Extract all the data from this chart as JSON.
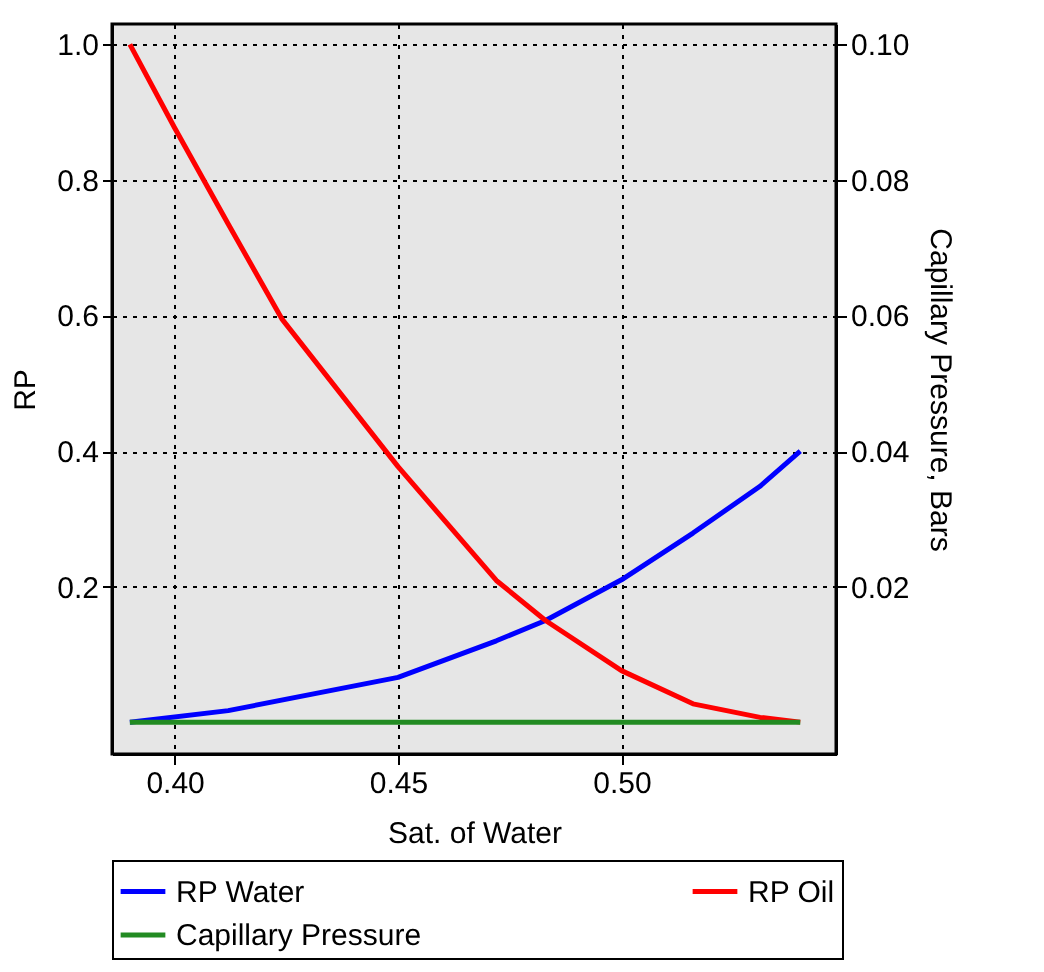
{
  "chart_data": {
    "type": "line",
    "xlabel": "Sat. of Water",
    "ylabel": "RP",
    "y2label": "Capillary Pressure, Bars",
    "xlim": [
      0.386,
      0.548
    ],
    "xticks": [
      {
        "value": 0.4,
        "label": "0.40"
      },
      {
        "value": 0.45,
        "label": "0.45"
      },
      {
        "value": 0.5,
        "label": "0.50"
      }
    ],
    "ylim": [
      -0.047,
      1.03
    ],
    "yticks": [
      0.2,
      0.4,
      0.6,
      0.8,
      {
        "value": 1.0,
        "label": "1.0"
      }
    ],
    "y2lim": [
      -0.0047,
      0.103
    ],
    "y2ticks": [
      0.02,
      0.04,
      0.06,
      0.08,
      {
        "value": 0.1,
        "label": "0.10"
      }
    ],
    "grid": true,
    "legend": "bottom",
    "line_style": "solid",
    "marker": "none",
    "series": [
      {
        "name": "RP Water",
        "color": "#0000ff",
        "x": [
          0.39,
          0.412,
          0.45,
          0.472,
          0.483,
          0.5,
          0.516,
          0.531,
          0.54
        ],
        "values": [
          0,
          0.017,
          0.066,
          0.12,
          0.15,
          0.21,
          0.279,
          0.348,
          0.4
        ]
      },
      {
        "name": "RP Oil",
        "color": "#ff0000",
        "x": [
          0.39,
          0.4,
          0.412,
          0.424,
          0.45,
          0.472,
          0.483,
          0.5,
          0.516,
          0.531,
          0.54
        ],
        "values": [
          1.0,
          0.877,
          0.735,
          0.595,
          0.377,
          0.209,
          0.15,
          0.076,
          0.027,
          0.007,
          0
        ]
      },
      {
        "name": "Capillary Pressure",
        "color": "#228b22",
        "axis": "y2",
        "x": [
          0.39,
          0.54
        ],
        "values": [
          0,
          0
        ]
      }
    ]
  }
}
